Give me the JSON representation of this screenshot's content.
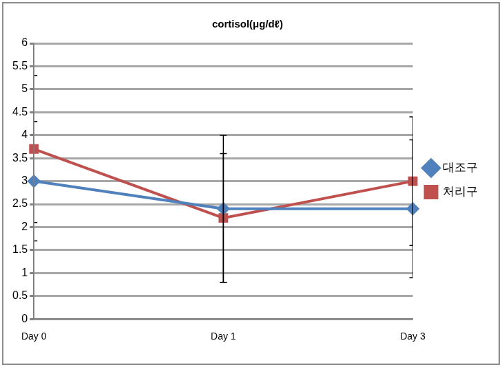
{
  "chart_data": {
    "type": "line",
    "title": "cortisol(μg/dℓ)",
    "categories": [
      "Day 0",
      "Day 1",
      "Day 3"
    ],
    "series": [
      {
        "name": "대조구",
        "color": "#4f81bd",
        "marker": "diamond",
        "values": [
          3.0,
          2.4,
          2.4
        ],
        "errors": [
          1.3,
          1.6,
          1.5
        ]
      },
      {
        "name": "처리구",
        "color": "#c0504d",
        "marker": "square",
        "values": [
          3.7,
          2.2,
          3.0
        ],
        "errors": [
          1.6,
          1.4,
          1.4
        ]
      }
    ],
    "ylim": [
      0,
      6
    ],
    "yticks": [
      0,
      0.5,
      1,
      1.5,
      2,
      2.5,
      3,
      3.5,
      4,
      4.5,
      5,
      5.5,
      6
    ],
    "grid": true,
    "legend": "right"
  }
}
